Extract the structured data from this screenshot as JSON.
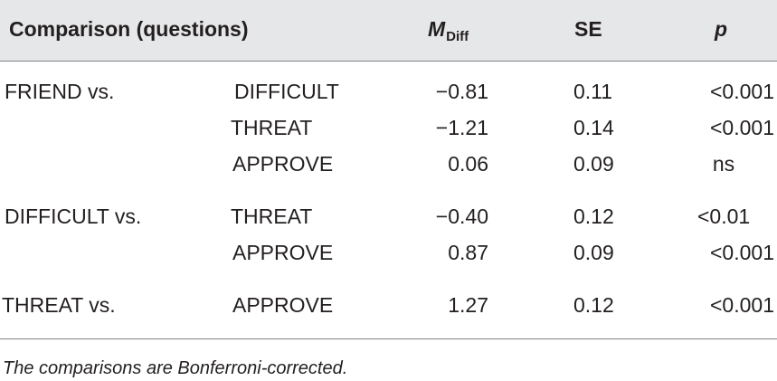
{
  "table": {
    "headers": {
      "comparison": "Comparison (questions)",
      "mdiff_main": "M",
      "mdiff_sub": "Diff",
      "se": "SE",
      "p": "p"
    },
    "rows": [
      {
        "group": "FRIEND vs.",
        "question": "DIFFICULT",
        "mdiff": "−0.81",
        "se": "0.11",
        "p": "<0.001"
      },
      {
        "group": "",
        "question": "THREAT",
        "mdiff": "−1.21",
        "se": "0.14",
        "p": "<0.001"
      },
      {
        "group": "",
        "question": "APPROVE",
        "mdiff": "0.06",
        "se": "0.09",
        "p": "ns"
      },
      {
        "group": "DIFFICULT vs.",
        "question": "THREAT",
        "mdiff": "−0.40",
        "se": "0.12",
        "p": "<0.01"
      },
      {
        "group": "",
        "question": "APPROVE",
        "mdiff": "0.87",
        "se": "0.09",
        "p": "<0.001"
      },
      {
        "group": "THREAT vs.",
        "question": "APPROVE",
        "mdiff": "1.27",
        "se": "0.12",
        "p": "<0.001"
      }
    ]
  },
  "footnote": "The comparisons are Bonferroni-corrected."
}
